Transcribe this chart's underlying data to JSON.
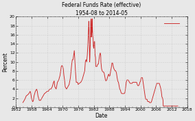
{
  "title_line1": "Federal Funds Rate (effective)",
  "title_line2": "1954-08 to 2014-05",
  "xlabel": "Date",
  "ylabel": "Percent",
  "xlim": [
    1952,
    2018
  ],
  "ylim": [
    0,
    20
  ],
  "yticks": [
    0,
    2,
    4,
    6,
    8,
    10,
    12,
    14,
    16,
    18,
    20
  ],
  "xticks": [
    1952,
    1958,
    1964,
    1970,
    1976,
    1982,
    1988,
    1994,
    2000,
    2006,
    2012,
    2018
  ],
  "line_color": "#cc2222",
  "background_color": "#e8e8e8",
  "plot_bg_color": "#e8e8e8",
  "grid_color": "#bbbbbb",
  "spine_color": "#555555",
  "title_fontsize": 5.5,
  "tick_fontsize": 4.5,
  "label_fontsize": 5.5,
  "line_width": 0.65,
  "data": [
    [
      1954.67,
      1.0
    ],
    [
      1955.0,
      1.3
    ],
    [
      1955.5,
      1.8
    ],
    [
      1956.0,
      2.5
    ],
    [
      1956.5,
      2.7
    ],
    [
      1957.0,
      3.0
    ],
    [
      1957.5,
      3.5
    ],
    [
      1957.75,
      3.0
    ],
    [
      1958.0,
      2.0
    ],
    [
      1958.25,
      1.5
    ],
    [
      1958.5,
      1.2
    ],
    [
      1958.75,
      1.5
    ],
    [
      1959.0,
      2.5
    ],
    [
      1959.5,
      3.5
    ],
    [
      1960.0,
      4.0
    ],
    [
      1960.25,
      3.5
    ],
    [
      1960.5,
      2.5
    ],
    [
      1960.75,
      2.0
    ],
    [
      1961.0,
      1.5
    ],
    [
      1961.5,
      1.5
    ],
    [
      1962.0,
      2.0
    ],
    [
      1962.5,
      2.5
    ],
    [
      1963.0,
      3.0
    ],
    [
      1963.5,
      3.2
    ],
    [
      1964.0,
      3.5
    ],
    [
      1964.5,
      3.5
    ],
    [
      1965.0,
      4.0
    ],
    [
      1965.5,
      4.0
    ],
    [
      1966.0,
      4.5
    ],
    [
      1966.25,
      5.0
    ],
    [
      1966.5,
      5.5
    ],
    [
      1966.75,
      5.8
    ],
    [
      1967.0,
      4.5
    ],
    [
      1967.5,
      4.0
    ],
    [
      1968.0,
      5.5
    ],
    [
      1968.5,
      6.0
    ],
    [
      1969.0,
      7.0
    ],
    [
      1969.25,
      8.0
    ],
    [
      1969.5,
      9.0
    ],
    [
      1969.75,
      9.2
    ],
    [
      1970.0,
      9.0
    ],
    [
      1970.25,
      8.5
    ],
    [
      1970.5,
      7.0
    ],
    [
      1970.75,
      6.0
    ],
    [
      1971.0,
      4.5
    ],
    [
      1971.5,
      4.0
    ],
    [
      1972.0,
      4.5
    ],
    [
      1972.5,
      5.0
    ],
    [
      1973.0,
      6.5
    ],
    [
      1973.25,
      8.0
    ],
    [
      1973.5,
      9.5
    ],
    [
      1973.75,
      10.5
    ],
    [
      1974.0,
      10.5
    ],
    [
      1974.25,
      11.5
    ],
    [
      1974.5,
      12.5
    ],
    [
      1974.75,
      10.0
    ],
    [
      1975.0,
      7.5
    ],
    [
      1975.25,
      5.5
    ],
    [
      1975.5,
      5.5
    ],
    [
      1975.75,
      5.5
    ],
    [
      1976.0,
      5.0
    ],
    [
      1976.5,
      5.3
    ],
    [
      1977.0,
      5.5
    ],
    [
      1977.5,
      6.0
    ],
    [
      1978.0,
      7.0
    ],
    [
      1978.25,
      7.5
    ],
    [
      1978.5,
      8.0
    ],
    [
      1978.75,
      10.0
    ],
    [
      1979.0,
      10.5
    ],
    [
      1979.25,
      10.0
    ],
    [
      1979.5,
      11.5
    ],
    [
      1979.75,
      14.0
    ],
    [
      1980.0,
      17.5
    ],
    [
      1980.08,
      19.0
    ],
    [
      1980.17,
      17.5
    ],
    [
      1980.25,
      15.0
    ],
    [
      1980.33,
      12.0
    ],
    [
      1980.42,
      10.0
    ],
    [
      1980.5,
      11.0
    ],
    [
      1980.58,
      13.0
    ],
    [
      1980.67,
      14.0
    ],
    [
      1980.75,
      17.0
    ],
    [
      1980.83,
      19.0
    ],
    [
      1981.0,
      19.5
    ],
    [
      1981.08,
      15.5
    ],
    [
      1981.17,
      17.0
    ],
    [
      1981.25,
      16.5
    ],
    [
      1981.33,
      19.0
    ],
    [
      1981.42,
      19.5
    ],
    [
      1981.5,
      17.0
    ],
    [
      1981.58,
      16.0
    ],
    [
      1981.67,
      15.5
    ],
    [
      1981.75,
      15.0
    ],
    [
      1981.83,
      13.5
    ],
    [
      1982.0,
      13.0
    ],
    [
      1982.17,
      14.5
    ],
    [
      1982.33,
      14.5
    ],
    [
      1982.5,
      11.5
    ],
    [
      1982.67,
      11.0
    ],
    [
      1982.75,
      9.0
    ],
    [
      1982.83,
      9.0
    ],
    [
      1983.0,
      9.0
    ],
    [
      1983.25,
      9.0
    ],
    [
      1983.5,
      9.5
    ],
    [
      1983.75,
      9.5
    ],
    [
      1984.0,
      10.5
    ],
    [
      1984.25,
      11.5
    ],
    [
      1984.5,
      12.0
    ],
    [
      1984.67,
      11.5
    ],
    [
      1984.75,
      10.0
    ],
    [
      1985.0,
      8.5
    ],
    [
      1985.25,
      8.0
    ],
    [
      1985.5,
      7.8
    ],
    [
      1985.75,
      7.8
    ],
    [
      1986.0,
      7.5
    ],
    [
      1986.17,
      7.0
    ],
    [
      1986.33,
      6.5
    ],
    [
      1986.5,
      6.0
    ],
    [
      1986.67,
      5.8
    ],
    [
      1986.75,
      5.9
    ],
    [
      1987.0,
      6.0
    ],
    [
      1987.25,
      6.5
    ],
    [
      1987.5,
      7.0
    ],
    [
      1987.75,
      7.3
    ],
    [
      1988.0,
      6.8
    ],
    [
      1988.25,
      7.0
    ],
    [
      1988.5,
      8.0
    ],
    [
      1988.75,
      8.75
    ],
    [
      1989.0,
      9.75
    ],
    [
      1989.25,
      9.75
    ],
    [
      1989.5,
      9.0
    ],
    [
      1989.75,
      8.5
    ],
    [
      1990.0,
      8.25
    ],
    [
      1990.25,
      8.0
    ],
    [
      1990.5,
      8.0
    ],
    [
      1990.75,
      7.5
    ],
    [
      1991.0,
      6.5
    ],
    [
      1991.25,
      5.75
    ],
    [
      1991.5,
      5.5
    ],
    [
      1991.75,
      4.75
    ],
    [
      1992.0,
      4.0
    ],
    [
      1992.25,
      3.75
    ],
    [
      1992.5,
      3.25
    ],
    [
      1992.75,
      3.0
    ],
    [
      1993.0,
      3.0
    ],
    [
      1993.25,
      3.0
    ],
    [
      1993.5,
      3.0
    ],
    [
      1993.75,
      3.0
    ],
    [
      1994.0,
      3.25
    ],
    [
      1994.25,
      4.25
    ],
    [
      1994.5,
      5.5
    ],
    [
      1994.75,
      6.0
    ],
    [
      1995.0,
      6.0
    ],
    [
      1995.25,
      6.0
    ],
    [
      1995.5,
      5.75
    ],
    [
      1995.75,
      5.5
    ],
    [
      1996.0,
      5.25
    ],
    [
      1996.25,
      5.25
    ],
    [
      1996.5,
      5.25
    ],
    [
      1996.75,
      5.25
    ],
    [
      1997.0,
      5.5
    ],
    [
      1997.25,
      5.5
    ],
    [
      1997.5,
      5.5
    ],
    [
      1997.75,
      5.5
    ],
    [
      1998.0,
      5.5
    ],
    [
      1998.25,
      5.5
    ],
    [
      1998.5,
      5.5
    ],
    [
      1998.75,
      5.0
    ],
    [
      1999.0,
      4.75
    ],
    [
      1999.25,
      4.75
    ],
    [
      1999.5,
      5.0
    ],
    [
      1999.75,
      5.5
    ],
    [
      2000.0,
      5.75
    ],
    [
      2000.25,
      6.5
    ],
    [
      2000.5,
      6.5
    ],
    [
      2000.75,
      6.5
    ],
    [
      2001.0,
      5.5
    ],
    [
      2001.25,
      4.5
    ],
    [
      2001.5,
      3.5
    ],
    [
      2001.75,
      2.5
    ],
    [
      2002.0,
      1.75
    ],
    [
      2002.25,
      1.75
    ],
    [
      2002.5,
      1.75
    ],
    [
      2002.75,
      1.25
    ],
    [
      2003.0,
      1.25
    ],
    [
      2003.25,
      1.25
    ],
    [
      2003.5,
      1.0
    ],
    [
      2003.75,
      1.0
    ],
    [
      2004.0,
      1.0
    ],
    [
      2004.25,
      1.25
    ],
    [
      2004.5,
      1.75
    ],
    [
      2004.75,
      2.25
    ],
    [
      2005.0,
      2.75
    ],
    [
      2005.25,
      3.25
    ],
    [
      2005.5,
      3.75
    ],
    [
      2005.75,
      4.25
    ],
    [
      2006.0,
      4.75
    ],
    [
      2006.25,
      5.25
    ],
    [
      2006.5,
      5.25
    ],
    [
      2006.75,
      5.25
    ],
    [
      2007.0,
      5.25
    ],
    [
      2007.25,
      5.25
    ],
    [
      2007.5,
      4.75
    ],
    [
      2007.75,
      4.25
    ],
    [
      2008.0,
      3.5
    ],
    [
      2008.25,
      2.25
    ],
    [
      2008.5,
      2.0
    ],
    [
      2008.67,
      1.5
    ],
    [
      2008.75,
      0.25
    ],
    [
      2009.0,
      0.25
    ],
    [
      2009.5,
      0.25
    ],
    [
      2010.0,
      0.25
    ],
    [
      2010.5,
      0.25
    ],
    [
      2011.0,
      0.25
    ],
    [
      2011.5,
      0.25
    ],
    [
      2012.0,
      0.25
    ],
    [
      2012.5,
      0.25
    ],
    [
      2013.0,
      0.25
    ],
    [
      2013.5,
      0.25
    ],
    [
      2014.0,
      0.25
    ],
    [
      2014.42,
      0.25
    ]
  ]
}
